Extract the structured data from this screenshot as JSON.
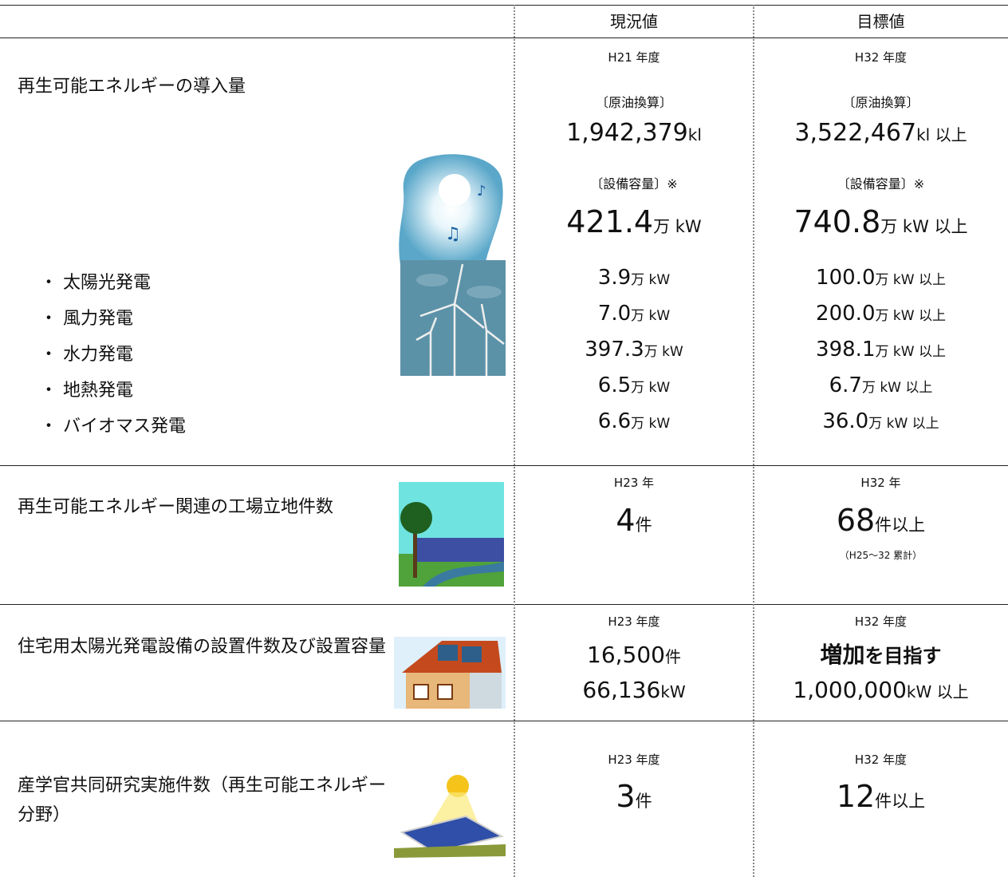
{
  "header": {
    "current": "現況値",
    "target": "目標値"
  },
  "rows": [
    {
      "label": "再生可能エネルギーの導入量",
      "current": {
        "period": "H21 年度",
        "oil_label": "〔原油換算〕",
        "oil_value": "1,942,379",
        "oil_unit": "kl",
        "capacity_label": "〔設備容量〕※",
        "capacity_value": "421.4",
        "capacity_unit": "万 kW"
      },
      "target": {
        "period": "H32 年度",
        "oil_label": "〔原油換算〕",
        "oil_value": "3,522,467",
        "oil_unit": "kl 以上",
        "capacity_label": "〔設備容量〕※",
        "capacity_value": "740.8",
        "capacity_unit": "万 kW 以上"
      },
      "items": [
        {
          "label": "・ 太陽光発電",
          "current_value": "3.9",
          "current_unit": "万 kW",
          "target_value": "100.0",
          "target_unit": "万 kW 以上"
        },
        {
          "label": "・ 風力発電",
          "current_value": "7.0",
          "current_unit": "万 kW",
          "target_value": "200.0",
          "target_unit": "万 kW 以上"
        },
        {
          "label": "・ 水力発電",
          "current_value": "397.3",
          "current_unit": "万 kW",
          "target_value": "398.1",
          "target_unit": "万 kW 以上"
        },
        {
          "label": "・ 地熱発電",
          "current_value": "6.5",
          "current_unit": "万 kW",
          "target_value": "6.7",
          "target_unit": "万 kW 以上"
        },
        {
          "label": "・ バイオマス発電",
          "current_value": "6.6",
          "current_unit": "万 kW",
          "target_value": "36.0",
          "target_unit": "万 kW 以上"
        }
      ]
    },
    {
      "label": "再生可能エネルギー関連の工場立地件数",
      "current": {
        "period": "H23 年",
        "value": "4",
        "unit": "件"
      },
      "target": {
        "period": "H32 年",
        "value": "68",
        "unit": "件以上",
        "note": "（H25～32 累計）"
      }
    },
    {
      "label": "住宅用太陽光発電設備の設置件数及び設置容量",
      "current": {
        "period": "H23 年度",
        "lines": [
          {
            "value": "16,500",
            "unit": "件"
          },
          {
            "value": "66,136",
            "unit": "kW"
          }
        ]
      },
      "target": {
        "period": "H32 年度",
        "lines": [
          {
            "value": "増加",
            "unit": "を目指す"
          },
          {
            "value": "1,000,000",
            "unit": "kW 以上"
          }
        ]
      }
    },
    {
      "label": "産学官共同研究実施件数（再生可能エネルギー分野）",
      "current": {
        "period": "H23 年度",
        "value": "3",
        "unit": "件"
      },
      "target": {
        "period": "H32 年度",
        "value": "12",
        "unit": "件以上"
      }
    }
  ]
}
